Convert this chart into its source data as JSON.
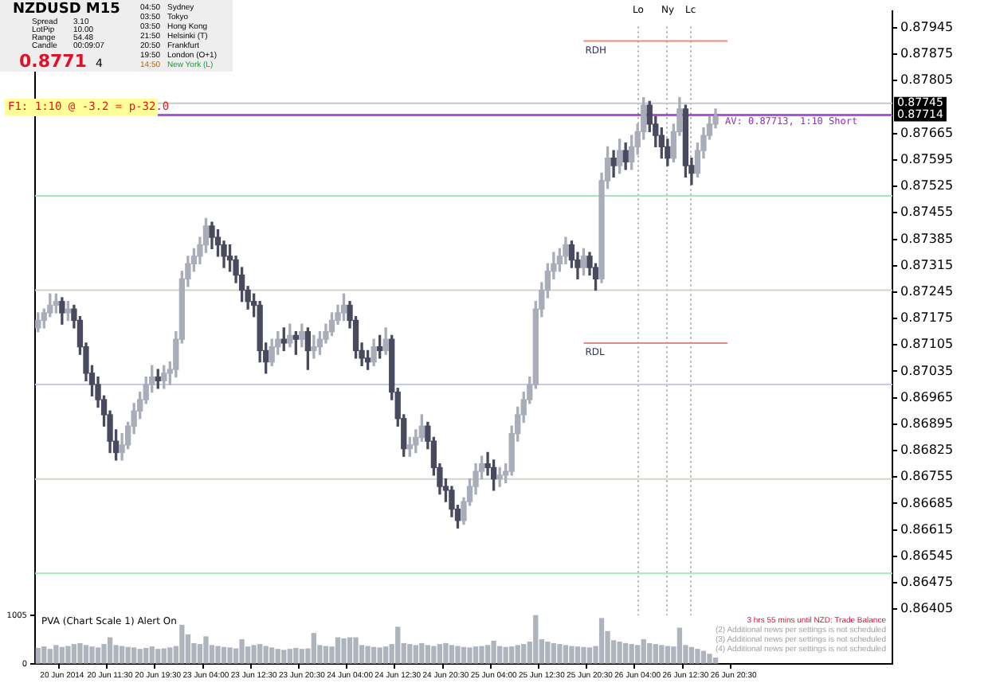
{
  "chart_data": {
    "type": "candlestick",
    "ylim": [
      0.8626,
      0.8799
    ],
    "y2lim": [
      0,
      13530
    ],
    "y2ticks": [
      0,
      1005
    ],
    "categories": [
      null,
      null,
      null,
      null,
      "20 Jun 2014",
      null,
      null,
      null,
      null,
      null,
      null,
      null,
      "20 Jun 11:30",
      null,
      null,
      null,
      null,
      null,
      null,
      null,
      "20 Jun 19:30",
      null,
      null,
      null,
      null,
      null,
      null,
      null,
      "23 Jun 04:00",
      null,
      null,
      null,
      null,
      null,
      null,
      null,
      "23 Jun 12:30",
      null,
      null,
      null,
      null,
      null,
      null,
      null,
      "23 Jun 20:30",
      null,
      null,
      null,
      null,
      null,
      null,
      null,
      "24 Jun 04:00",
      null,
      null,
      null,
      null,
      null,
      null,
      null,
      "24 Jun 12:30",
      null,
      null,
      null,
      null,
      null,
      null,
      null,
      "24 Jun 20:30",
      null,
      null,
      null,
      null,
      null,
      null,
      null,
      "25 Jun 04:00",
      null,
      null,
      null,
      null,
      null,
      null,
      null,
      "25 Jun 12:30",
      null,
      null,
      null,
      null,
      null,
      null,
      null,
      "25 Jun 20:30",
      null,
      null,
      null,
      null,
      null,
      null,
      null,
      "26 Jun 04:00",
      null,
      null,
      null,
      null,
      null,
      null,
      null,
      "26 Jun 12:30",
      null,
      null,
      null,
      null,
      null,
      null,
      null,
      "26 Jun 20:30",
      null,
      null,
      null,
      null,
      null,
      null,
      null,
      null,
      null,
      null,
      null,
      null,
      null,
      null,
      null,
      null,
      null,
      null,
      null,
      null,
      null,
      null,
      null,
      null,
      null,
      null
    ],
    "yticks": [
      0.87945,
      0.87875,
      0.87805,
      0.87665,
      0.87595,
      0.87525,
      0.87455,
      0.87385,
      0.87315,
      0.87245,
      0.87175,
      0.87105,
      0.87035,
      0.86965,
      0.86895,
      0.86825,
      0.86755,
      0.86685,
      0.86615,
      0.86545,
      0.86475,
      0.86405
    ],
    "series": [
      {
        "colors": [
          "#a9adb9",
          "#a9adb9",
          "#a9adb9",
          "#a9adb9",
          "#4a4a5e",
          "#a9adb9",
          "#4a4a5e",
          "#4a4a5e",
          "#4a4a5e",
          "#4a4a5e",
          "#4a4a5e",
          "#4a4a5e",
          "#4a4a5e",
          "#4a4a5e",
          "#a9adb9",
          "#a9adb9",
          "#a9adb9",
          "#a9adb9",
          "#a9adb9",
          "#a9adb9",
          "#4a4a5e",
          "#a9adb9",
          "#a9adb9",
          "#a9adb9",
          "#a9adb9",
          "#a9adb9",
          "#a9adb9",
          "#a9adb9",
          "#a9adb9",
          "#4a4a5e",
          "#4a4a5e",
          "#4a4a5e",
          "#4a4a5e",
          "#4a4a5e",
          "#4a4a5e",
          "#4a4a5e",
          "#4a4a5e",
          "#4a4a5e",
          "#4a4a5e",
          "#a9adb9",
          "#a9adb9",
          "#4a4a5e",
          "#a9adb9",
          "#4a4a5e",
          "#a9adb9",
          "#4a4a5e",
          "#a9adb9",
          "#a9adb9",
          "#a9adb9",
          "#a9adb9",
          "#a9adb9",
          "#a9adb9",
          "#4a4a5e",
          "#4a4a5e",
          "#4a4a5e",
          "#4a4a5e",
          "#a9adb9",
          "#4a4a5e",
          "#a9adb9",
          "#4a4a5e",
          "#4a4a5e",
          "#4a4a5e",
          "#a9adb9",
          "#a9adb9",
          "#a9adb9",
          "#4a4a5e",
          "#4a4a5e",
          "#4a4a5e",
          "#4a4a5e",
          "#4a4a5e",
          "#4a4a5e",
          "#a9adb9",
          "#a9adb9",
          "#a9adb9",
          "#a9adb9",
          "#4a4a5e",
          "#4a4a5e",
          "#a9adb9",
          "#a9adb9",
          "#a9adb9",
          "#a9adb9",
          "#a9adb9",
          "#a9adb9",
          "#a9adb9",
          "#a9adb9",
          "#a9adb9",
          "#a9adb9",
          "#a9adb9",
          "#a9adb9",
          "#4a4a5e",
          "#4a4a5e",
          "#a9adb9",
          "#4a4a5e",
          "#4a4a5e",
          "#a9adb9",
          "#a9adb9",
          "#4a4a5e",
          "#a9adb9",
          "#4a4a5e",
          "#a9adb9",
          "#a9adb9",
          "#a9adb9",
          "#4a4a5e",
          "#4a4a5e",
          "#4a4a5e",
          "#4a4a5e",
          "#a9adb9",
          "#a9adb9",
          "#4a4a5e",
          "#4a4a5e",
          "#a9adb9",
          "#a9adb9",
          "#a9adb9",
          "#a9adb9",
          null,
          null,
          null,
          null,
          null,
          null,
          null,
          null,
          null,
          null,
          null,
          null,
          null,
          null,
          null,
          null,
          null,
          null,
          null,
          null,
          null,
          null,
          null,
          null,
          null,
          null,
          null,
          null,
          null
        ],
        "ohlc": [
          [
            0.8715,
            0.8719,
            0.8714,
            0.8717
          ],
          [
            0.8717,
            0.872,
            0.8715,
            0.8719
          ],
          [
            0.8719,
            0.8724,
            0.8718,
            0.8721
          ],
          [
            0.8721,
            0.8724,
            0.8719,
            0.8722
          ],
          [
            0.8722,
            0.8723,
            0.8716,
            0.8719
          ],
          [
            0.8719,
            0.8722,
            0.8717,
            0.872
          ],
          [
            0.872,
            0.8721,
            0.8715,
            0.8717
          ],
          [
            0.8717,
            0.8718,
            0.8708,
            0.871
          ],
          [
            0.871,
            0.8711,
            0.8701,
            0.8703
          ],
          [
            0.8703,
            0.8705,
            0.8697,
            0.87
          ],
          [
            0.87,
            0.8702,
            0.8694,
            0.8696
          ],
          [
            0.8696,
            0.8697,
            0.8689,
            0.8692
          ],
          [
            0.8692,
            0.8693,
            0.8682,
            0.8685
          ],
          [
            0.8685,
            0.8688,
            0.868,
            0.8682
          ],
          [
            0.8682,
            0.8687,
            0.868,
            0.8684
          ],
          [
            0.8684,
            0.869,
            0.8683,
            0.8689
          ],
          [
            0.8689,
            0.8695,
            0.8687,
            0.8693
          ],
          [
            0.8693,
            0.8698,
            0.8691,
            0.8696
          ],
          [
            0.8696,
            0.8702,
            0.8695,
            0.87
          ],
          [
            0.87,
            0.8705,
            0.8698,
            0.8702
          ],
          [
            0.8702,
            0.8704,
            0.8699,
            0.8701
          ],
          [
            0.8701,
            0.8705,
            0.8699,
            0.8703
          ],
          [
            0.8703,
            0.8706,
            0.87,
            0.8704
          ],
          [
            0.8704,
            0.8714,
            0.8702,
            0.8712
          ],
          [
            0.8712,
            0.873,
            0.8711,
            0.8728
          ],
          [
            0.8728,
            0.8734,
            0.8726,
            0.8732
          ],
          [
            0.8732,
            0.8736,
            0.873,
            0.8734
          ],
          [
            0.8734,
            0.8739,
            0.8732,
            0.8737
          ],
          [
            0.8737,
            0.8744,
            0.8735,
            0.8742
          ],
          [
            0.8742,
            0.8743,
            0.8736,
            0.8739
          ],
          [
            0.8739,
            0.8741,
            0.8734,
            0.8737
          ],
          [
            0.8737,
            0.8738,
            0.8731,
            0.8734
          ],
          [
            0.8734,
            0.8737,
            0.873,
            0.8733
          ],
          [
            0.8733,
            0.8734,
            0.8727,
            0.8729
          ],
          [
            0.8729,
            0.8731,
            0.8722,
            0.8725
          ],
          [
            0.8725,
            0.8726,
            0.872,
            0.8722
          ],
          [
            0.8722,
            0.8724,
            0.8718,
            0.8721
          ],
          [
            0.8721,
            0.8722,
            0.8706,
            0.8709
          ],
          [
            0.8709,
            0.8711,
            0.8703,
            0.8706
          ],
          [
            0.8706,
            0.8712,
            0.8705,
            0.871
          ],
          [
            0.871,
            0.8714,
            0.8708,
            0.8712
          ],
          [
            0.8712,
            0.8715,
            0.8709,
            0.8711
          ],
          [
            0.8711,
            0.8716,
            0.871,
            0.8713
          ],
          [
            0.8713,
            0.8714,
            0.8708,
            0.8712
          ],
          [
            0.8712,
            0.8716,
            0.871,
            0.8714
          ],
          [
            0.8714,
            0.8715,
            0.8704,
            0.8709
          ],
          [
            0.8709,
            0.8713,
            0.8707,
            0.871
          ],
          [
            0.871,
            0.8714,
            0.8708,
            0.8712
          ],
          [
            0.8712,
            0.8716,
            0.8711,
            0.8714
          ],
          [
            0.8714,
            0.8719,
            0.8713,
            0.8717
          ],
          [
            0.8717,
            0.8721,
            0.8716,
            0.8719
          ],
          [
            0.8719,
            0.8724,
            0.8717,
            0.8721
          ],
          [
            0.8721,
            0.8722,
            0.8715,
            0.8717
          ],
          [
            0.8717,
            0.8718,
            0.8707,
            0.8709
          ],
          [
            0.8709,
            0.8711,
            0.8705,
            0.8707
          ],
          [
            0.8707,
            0.8709,
            0.8704,
            0.8706
          ],
          [
            0.8706,
            0.8712,
            0.8705,
            0.871
          ],
          [
            0.871,
            0.8713,
            0.8707,
            0.8709
          ],
          [
            0.8709,
            0.8715,
            0.8708,
            0.8712
          ],
          [
            0.8712,
            0.8713,
            0.8696,
            0.8698
          ],
          [
            0.8698,
            0.8699,
            0.8689,
            0.8691
          ],
          [
            0.8691,
            0.8692,
            0.8681,
            0.8683
          ],
          [
            0.8683,
            0.8686,
            0.8681,
            0.8684
          ],
          [
            0.8684,
            0.8688,
            0.8682,
            0.8686
          ],
          [
            0.8686,
            0.8692,
            0.8685,
            0.8689
          ],
          [
            0.8689,
            0.869,
            0.8683,
            0.8685
          ],
          [
            0.8685,
            0.8686,
            0.8676,
            0.8678
          ],
          [
            0.8678,
            0.8679,
            0.8671,
            0.8673
          ],
          [
            0.8673,
            0.8675,
            0.8669,
            0.8672
          ],
          [
            0.8672,
            0.8673,
            0.8665,
            0.8667
          ],
          [
            0.8667,
            0.8668,
            0.8662,
            0.8664
          ],
          [
            0.8664,
            0.867,
            0.8663,
            0.8669
          ],
          [
            0.8669,
            0.8675,
            0.8668,
            0.8673
          ],
          [
            0.8673,
            0.8679,
            0.8671,
            0.8677
          ],
          [
            0.8677,
            0.8681,
            0.8675,
            0.8679
          ],
          [
            0.8679,
            0.8682,
            0.8676,
            0.8678
          ],
          [
            0.8678,
            0.868,
            0.8672,
            0.8675
          ],
          [
            0.8675,
            0.8678,
            0.8673,
            0.8676
          ],
          [
            0.8676,
            0.8679,
            0.8674,
            0.8677
          ],
          [
            0.8677,
            0.8689,
            0.8676,
            0.8687
          ],
          [
            0.8687,
            0.8694,
            0.8685,
            0.8692
          ],
          [
            0.8692,
            0.8698,
            0.869,
            0.8696
          ],
          [
            0.8696,
            0.8702,
            0.8695,
            0.87
          ],
          [
            0.87,
            0.8722,
            0.8699,
            0.872
          ],
          [
            0.872,
            0.8727,
            0.8718,
            0.8725
          ],
          [
            0.8725,
            0.8732,
            0.8723,
            0.873
          ],
          [
            0.873,
            0.8735,
            0.8728,
            0.8732
          ],
          [
            0.8732,
            0.8736,
            0.873,
            0.8734
          ],
          [
            0.8734,
            0.8739,
            0.8732,
            0.8737
          ],
          [
            0.8737,
            0.8738,
            0.8731,
            0.8733
          ],
          [
            0.8733,
            0.8735,
            0.8728,
            0.8731
          ],
          [
            0.8731,
            0.8736,
            0.8729,
            0.8734
          ],
          [
            0.8734,
            0.8735,
            0.8729,
            0.8731
          ],
          [
            0.8731,
            0.8732,
            0.8725,
            0.8728
          ],
          [
            0.8728,
            0.8756,
            0.8727,
            0.8754
          ],
          [
            0.8754,
            0.8763,
            0.8752,
            0.876
          ],
          [
            0.876,
            0.8762,
            0.8755,
            0.8758
          ],
          [
            0.8758,
            0.8765,
            0.8756,
            0.8762
          ],
          [
            0.8762,
            0.8764,
            0.8757,
            0.8759
          ],
          [
            0.8759,
            0.8766,
            0.8757,
            0.8763
          ],
          [
            0.8763,
            0.8769,
            0.8761,
            0.8767
          ],
          [
            0.8767,
            0.8776,
            0.8765,
            0.8774
          ],
          [
            0.8774,
            0.8775,
            0.8767,
            0.8769
          ],
          [
            0.8769,
            0.8771,
            0.8763,
            0.8766
          ],
          [
            0.8766,
            0.8768,
            0.876,
            0.8763
          ],
          [
            0.8763,
            0.8765,
            0.8758,
            0.876
          ],
          [
            0.876,
            0.8769,
            0.8759,
            0.8767
          ],
          [
            0.8767,
            0.8776,
            0.8766,
            0.8773
          ],
          [
            0.8773,
            0.8774,
            0.8755,
            0.8758
          ],
          [
            0.8758,
            0.876,
            0.8753,
            0.8756
          ],
          [
            0.8756,
            0.8764,
            0.8755,
            0.8762
          ],
          [
            0.8762,
            0.8768,
            0.876,
            0.8766
          ],
          [
            0.8766,
            0.8771,
            0.8765,
            0.8769
          ],
          [
            0.8769,
            0.8773,
            0.8768,
            0.8771
          ],
          null,
          null,
          null,
          null,
          null,
          null,
          null,
          null,
          null,
          null,
          null,
          null,
          null,
          null,
          null,
          null,
          null,
          null,
          null,
          null,
          null,
          null,
          null,
          null,
          null,
          null,
          null,
          null,
          null
        ]
      },
      {
        "type": "line",
        "name": "RDH",
        "color": "#f08a70",
        "values": [
          null,
          null,
          null,
          null,
          null,
          null,
          null,
          null,
          null,
          null,
          null,
          null,
          null,
          null,
          null,
          null,
          null,
          null,
          null,
          null,
          null,
          null,
          null,
          null,
          null,
          null,
          null,
          null,
          null,
          null,
          null,
          null,
          null,
          null,
          null,
          null,
          null,
          null,
          null,
          null,
          null,
          null,
          null,
          null,
          null,
          null,
          null,
          null,
          null,
          null,
          null,
          null,
          null,
          null,
          null,
          null,
          null,
          null,
          null,
          null,
          null,
          null,
          null,
          null,
          null,
          null,
          null,
          null,
          null,
          null,
          null,
          null,
          null,
          null,
          null,
          null,
          null,
          null,
          null,
          null,
          null,
          null,
          null,
          null,
          null,
          null,
          null,
          null,
          null,
          null,
          null,
          0.8791,
          0.8791,
          0.8791,
          0.8791,
          0.8791,
          0.8791,
          0.8791,
          0.8791,
          0.8791,
          0.8791,
          0.8791,
          0.8791,
          0.8791,
          0.8791,
          0.8791,
          0.8791,
          0.8791,
          0.8791,
          0.8791,
          0.8791,
          0.8791,
          0.8791,
          0.8791,
          0.8791,
          0.8791,
          null,
          null,
          null,
          null,
          null,
          null,
          null,
          null,
          null,
          null,
          null,
          null,
          null,
          null,
          null,
          null,
          null,
          null,
          null,
          null,
          null,
          null,
          null,
          null,
          null,
          null,
          null
        ]
      },
      {
        "type": "line",
        "name": "RDL",
        "color": "#e08a8a",
        "values": [
          null,
          null,
          null,
          null,
          null,
          null,
          null,
          null,
          null,
          null,
          null,
          null,
          null,
          null,
          null,
          null,
          null,
          null,
          null,
          null,
          null,
          null,
          null,
          null,
          null,
          null,
          null,
          null,
          null,
          null,
          null,
          null,
          null,
          null,
          null,
          null,
          null,
          null,
          null,
          null,
          null,
          null,
          null,
          null,
          null,
          null,
          null,
          null,
          null,
          null,
          null,
          null,
          null,
          null,
          null,
          null,
          null,
          null,
          null,
          null,
          null,
          null,
          null,
          null,
          null,
          null,
          null,
          null,
          null,
          null,
          null,
          null,
          null,
          null,
          null,
          null,
          null,
          null,
          null,
          null,
          null,
          null,
          null,
          null,
          null,
          null,
          null,
          null,
          null,
          null,
          null,
          0.8711,
          0.8711,
          0.8711,
          0.8711,
          0.8711,
          0.8711,
          0.8711,
          0.8711,
          0.8711,
          0.8711,
          0.8711,
          0.8711,
          0.8711,
          0.8711,
          0.8711,
          0.8711,
          0.8711,
          0.8711,
          0.8711,
          0.8711,
          0.8711,
          0.8711,
          0.8711,
          0.8711,
          0.8711,
          null,
          null,
          null,
          null,
          null,
          null,
          null,
          null,
          null,
          null,
          null,
          null,
          null,
          null,
          null,
          null,
          null,
          null,
          null,
          null,
          null,
          null,
          null,
          null,
          null,
          null,
          null
        ]
      },
      {
        "type": "bar",
        "axis": "y2",
        "color": "#aeb4be",
        "values": [
          320,
          350,
          300,
          380,
          340,
          360,
          400,
          420,
          380,
          350,
          330,
          400,
          540,
          380,
          360,
          340,
          330,
          300,
          320,
          350,
          300,
          310,
          330,
          360,
          800,
          600,
          420,
          400,
          560,
          380,
          360,
          340,
          330,
          310,
          500,
          350,
          380,
          400,
          360,
          330,
          300,
          280,
          300,
          320,
          300,
          310,
          630,
          380,
          360,
          350,
          540,
          520,
          540,
          540,
          380,
          360,
          340,
          330,
          350,
          400,
          760,
          420,
          400,
          380,
          420,
          380,
          360,
          400,
          420,
          380,
          360,
          340,
          330,
          350,
          360,
          380,
          470,
          360,
          340,
          350,
          380,
          400,
          450,
          1000,
          500,
          450,
          420,
          400,
          380,
          360,
          350,
          340,
          330,
          360,
          940,
          670,
          480,
          450,
          420,
          400,
          380,
          500,
          420,
          400,
          380,
          360,
          350,
          740,
          380,
          340,
          300,
          260,
          200,
          120,
          null,
          null,
          null,
          null,
          null,
          null,
          null,
          null,
          null,
          null,
          null,
          null,
          null,
          null,
          null,
          null,
          null,
          null,
          null,
          null,
          null,
          null,
          null,
          null,
          null,
          null,
          null,
          null,
          null
        ]
      }
    ],
    "ref_lines": [
      {
        "axis": "y",
        "value": 0.875,
        "color": "#a8e4c0"
      },
      {
        "axis": "y",
        "value": 0.8725,
        "color": "#d4d4c8"
      },
      {
        "axis": "y",
        "value": 0.87,
        "color": "#c8c8f4"
      },
      {
        "axis": "y",
        "value": 0.8675,
        "color": "#d4d4c8"
      },
      {
        "axis": "y",
        "value": 0.865,
        "color": "#a8e4c0"
      },
      {
        "axis": "y",
        "value": 0.87745,
        "label": "0.87745",
        "color": "#c4c8cc"
      },
      {
        "axis": "y",
        "value": 0.87714,
        "label": "0.87714",
        "color": "#000000"
      },
      {
        "axis": "y",
        "value": 0.87713,
        "color": "#b050e0"
      }
    ],
    "annotations": [
      "NZDUSD  M15",
      "Spread",
      "3.10",
      "LotPip",
      "10.00",
      "Range",
      "54.48",
      "Candle",
      "00:09:07",
      "0.8771",
      "4",
      "04:50",
      "Sydney",
      "03:50",
      "Tokyo",
      "03:50",
      "Hong Kong",
      "21:50",
      "Helsinki (T)",
      "20:50",
      "Frankfurt",
      "19:50",
      "London (O+1)",
      "14:50",
      "New York (L)",
      "F1: 1:10 @ -3.2 = p-32.0",
      {
        "text": "AV: 0.87713, 1:10 Short",
        "y": 0.87713
      },
      "Lo",
      "Ny",
      "Lc",
      "PVA (Chart Scale 1)   Alert On",
      "3 hrs 55 mins until NZD: Trade Balance",
      "(2) Additional news per settings is not scheduled",
      "(3) Additional news per settings is not scheduled",
      "(4) Additional news per settings is not scheduled"
    ]
  }
}
